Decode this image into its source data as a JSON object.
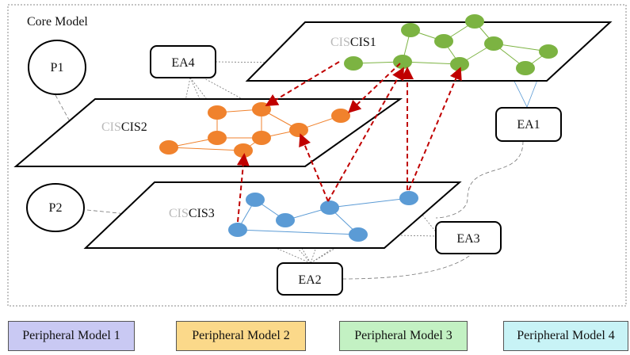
{
  "diagram": {
    "core_title": "Core Model",
    "planes": {
      "cis1": {
        "prefix": "CIS",
        "label": "CIS1"
      },
      "cis2": {
        "prefix": "CIS",
        "label": "CIS2"
      },
      "cis3": {
        "prefix": "CIS",
        "label": "CIS3"
      }
    },
    "entities": {
      "p1": "P1",
      "p2": "P2",
      "ea1": "EA1",
      "ea2": "EA2",
      "ea3": "EA3",
      "ea4": "EA4"
    },
    "colors": {
      "cis1_node": "#7cb342",
      "cis2_node": "#f0822d",
      "cis3_node": "#5b9bd5",
      "dependency_arrow": "#c00000"
    }
  },
  "legend": {
    "items": [
      {
        "label": "Peripheral Model 1",
        "color": "#c9c9f3"
      },
      {
        "label": "Peripheral Model 2",
        "color": "#fbd98a"
      },
      {
        "label": "Peripheral Model 3",
        "color": "#c3f1c3"
      },
      {
        "label": "Peripheral Model 4",
        "color": "#c8f3f6"
      }
    ]
  }
}
